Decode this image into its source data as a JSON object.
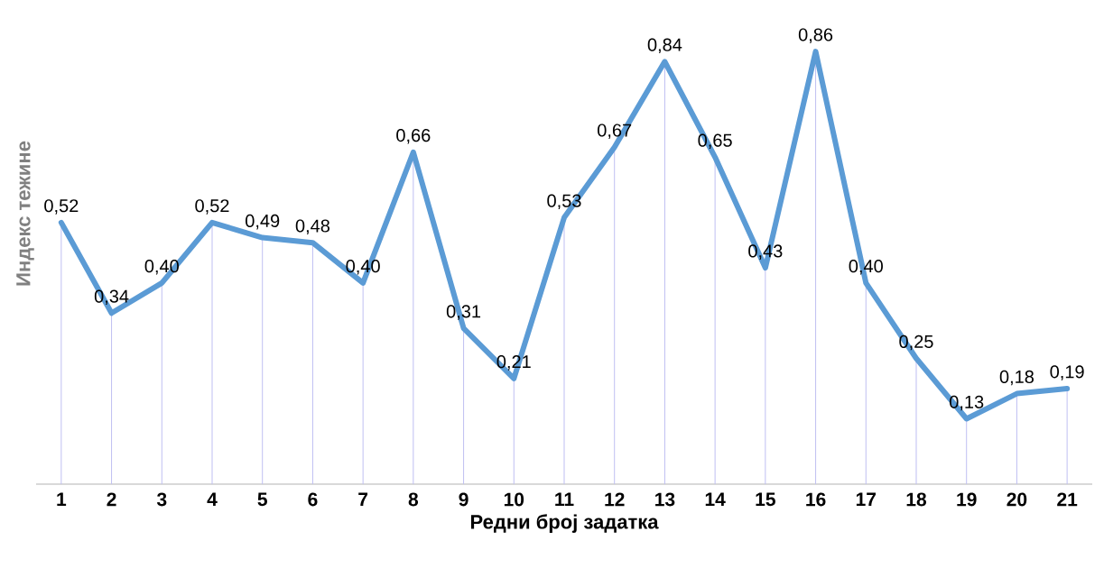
{
  "chart_data": {
    "type": "line",
    "xlabel": "Редни број задатка",
    "ylabel": "Индекс тежине",
    "color": "#5b9bd5",
    "categories": [
      "1",
      "2",
      "3",
      "4",
      "5",
      "6",
      "7",
      "8",
      "9",
      "10",
      "11",
      "12",
      "13",
      "14",
      "15",
      "16",
      "17",
      "18",
      "19",
      "20",
      "21"
    ],
    "values": [
      0.52,
      0.34,
      0.4,
      0.52,
      0.49,
      0.48,
      0.4,
      0.66,
      0.31,
      0.21,
      0.53,
      0.67,
      0.84,
      0.65,
      0.43,
      0.86,
      0.4,
      0.25,
      0.13,
      0.18,
      0.19
    ],
    "value_labels": [
      "0,52",
      "0,34",
      "0,40",
      "0,52",
      "0,49",
      "0,48",
      "0,40",
      "0,66",
      "0,31",
      "0,21",
      "0,53",
      "0,67",
      "0,84",
      "0,65",
      "0,43",
      "0,86",
      "0,40",
      "0,25",
      "0,13",
      "0,18",
      "0,19"
    ],
    "grid": "x"
  }
}
